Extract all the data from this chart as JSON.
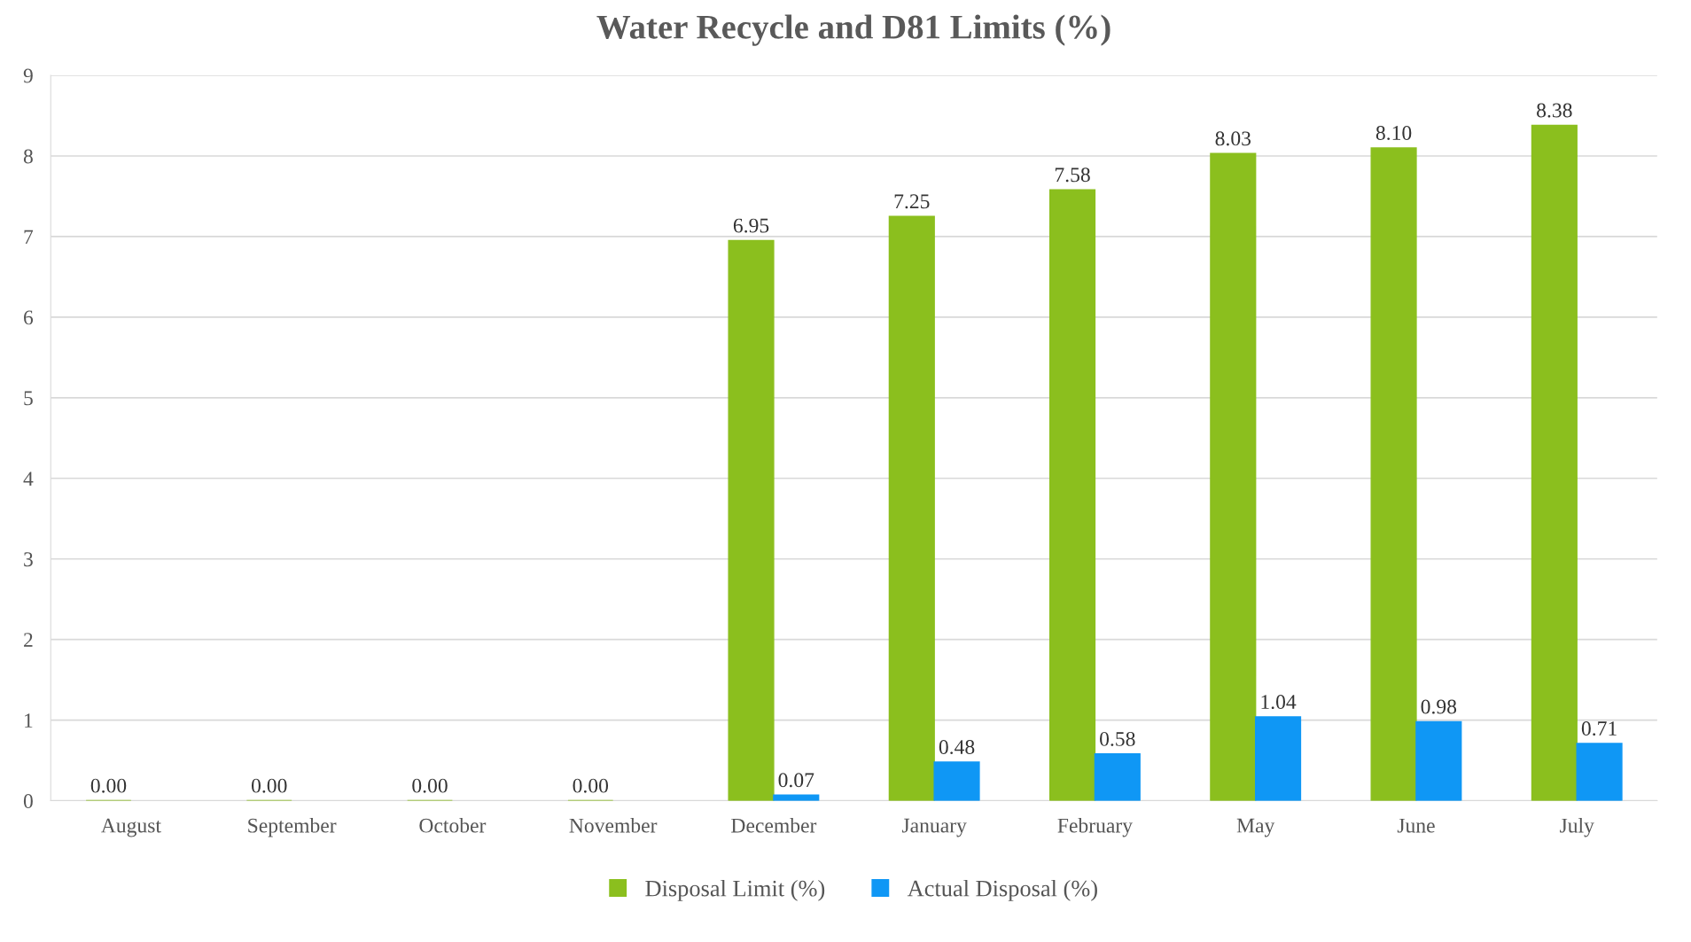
{
  "chart_data": {
    "type": "bar",
    "title": "Water Recycle and D81 Limits (%)",
    "categories": [
      "August",
      "September",
      "October",
      "November",
      "December",
      "January",
      "February",
      "May",
      "June",
      "July"
    ],
    "series": [
      {
        "name": "Disposal Limit (%)",
        "color": "#8bbf1e",
        "values": [
          0,
          0,
          0,
          0,
          6.95,
          7.25,
          7.58,
          8.03,
          8.1,
          8.38
        ],
        "value_labels": [
          "0.00",
          "0.00",
          "0.00",
          "0.00",
          "6.95",
          "7.25",
          "7.58",
          "8.03",
          "8.10",
          "8.38"
        ]
      },
      {
        "name": "Actual Disposal (%)",
        "color": "#0f97f5",
        "values": [
          null,
          null,
          null,
          null,
          0.07,
          0.48,
          0.58,
          1.04,
          0.98,
          0.71
        ],
        "value_labels": [
          null,
          null,
          null,
          null,
          "0.07",
          "0.48",
          "0.58",
          "1.04",
          "0.98",
          "0.71"
        ]
      }
    ],
    "ylim": [
      0,
      9
    ],
    "yticks": [
      0,
      1,
      2,
      3,
      4,
      5,
      6,
      7,
      8,
      9
    ],
    "grid": "y",
    "legend": "bottom"
  }
}
